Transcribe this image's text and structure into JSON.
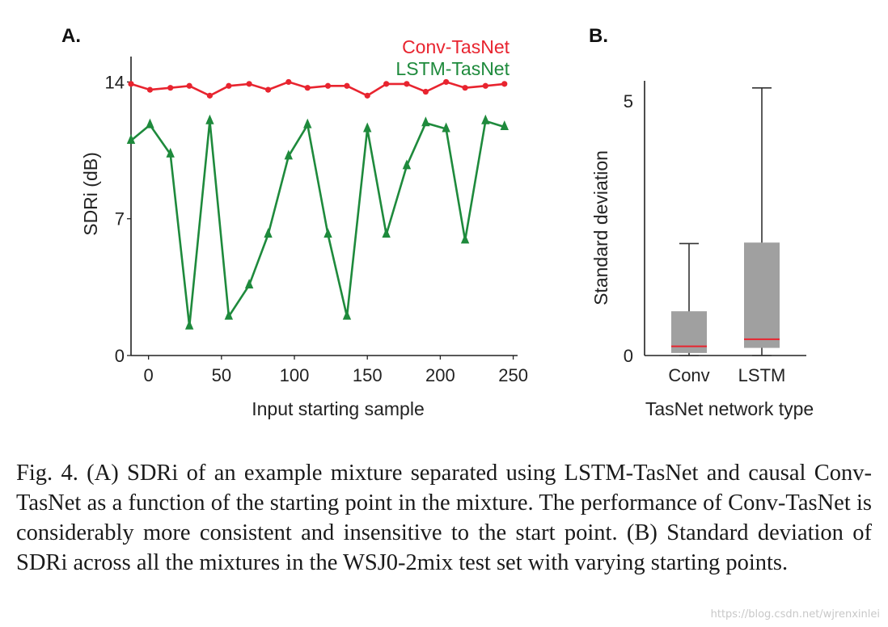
{
  "panels": {
    "a_label": "A.",
    "b_label": "B."
  },
  "chart_data": [
    {
      "type": "line",
      "xlabel": "Input starting sample",
      "ylabel": "SDRi (dB)",
      "xticks": [
        0,
        50,
        100,
        150,
        200,
        250
      ],
      "yticks": [
        0,
        7,
        14
      ],
      "xlim": [
        -12,
        253
      ],
      "ylim": [
        0,
        15.3
      ],
      "grid": false,
      "legend": "top-right",
      "series": [
        {
          "name": "Conv-TasNet",
          "color": "#e8242f",
          "marker": "circle",
          "x": [
            -12,
            1,
            15,
            28,
            42,
            55,
            69,
            82,
            96,
            109,
            123,
            136,
            150,
            163,
            177,
            190,
            204,
            217,
            231,
            244
          ],
          "y": [
            13.9,
            13.6,
            13.7,
            13.8,
            13.3,
            13.8,
            13.9,
            13.6,
            14.0,
            13.7,
            13.8,
            13.8,
            13.3,
            13.9,
            13.9,
            13.5,
            14.0,
            13.7,
            13.8,
            13.9
          ]
        },
        {
          "name": "LSTM-TasNet",
          "color": "#1e8a3c",
          "marker": "triangle",
          "x": [
            -12,
            1,
            15,
            28,
            42,
            55,
            69,
            82,
            96,
            109,
            123,
            136,
            150,
            163,
            177,
            190,
            204,
            217,
            231,
            244
          ],
          "y": [
            11.0,
            11.8,
            10.3,
            1.5,
            12.0,
            2.0,
            3.6,
            6.2,
            10.2,
            11.8,
            6.2,
            2.0,
            11.6,
            6.2,
            9.7,
            11.9,
            11.6,
            5.9,
            12.0,
            11.7
          ]
        }
      ]
    },
    {
      "type": "box",
      "xlabel": "TasNet network type",
      "ylabel": "Standard deviation",
      "categories": [
        "Conv",
        "LSTM"
      ],
      "yticks": [
        0,
        5
      ],
      "ylim": [
        0,
        5.4
      ],
      "grid": false,
      "box_color": "#a0a0a0",
      "median_color": "#e8242f",
      "whisker_color": "#333333",
      "boxes": [
        {
          "category": "Conv",
          "whisker_low": 0.0,
          "q1": 0.05,
          "median": 0.18,
          "q3": 0.87,
          "whisker_high": 2.2
        },
        {
          "category": "LSTM",
          "whisker_low": 0.0,
          "q1": 0.15,
          "median": 0.32,
          "q3": 2.22,
          "whisker_high": 5.26
        }
      ]
    }
  ],
  "caption": "Fig. 4.    (A) SDRi of an example mixture separated using LSTM-TasNet and causal Conv-TasNet as a function of the starting point in the mixture. The performance of Conv-TasNet is considerably more consistent and insensitive to the start point. (B) Standard deviation of SDRi across all the mixtures in the WSJ0-2mix test set with varying starting points.",
  "watermark": "https://blog.csdn.net/wjrenxinlei"
}
